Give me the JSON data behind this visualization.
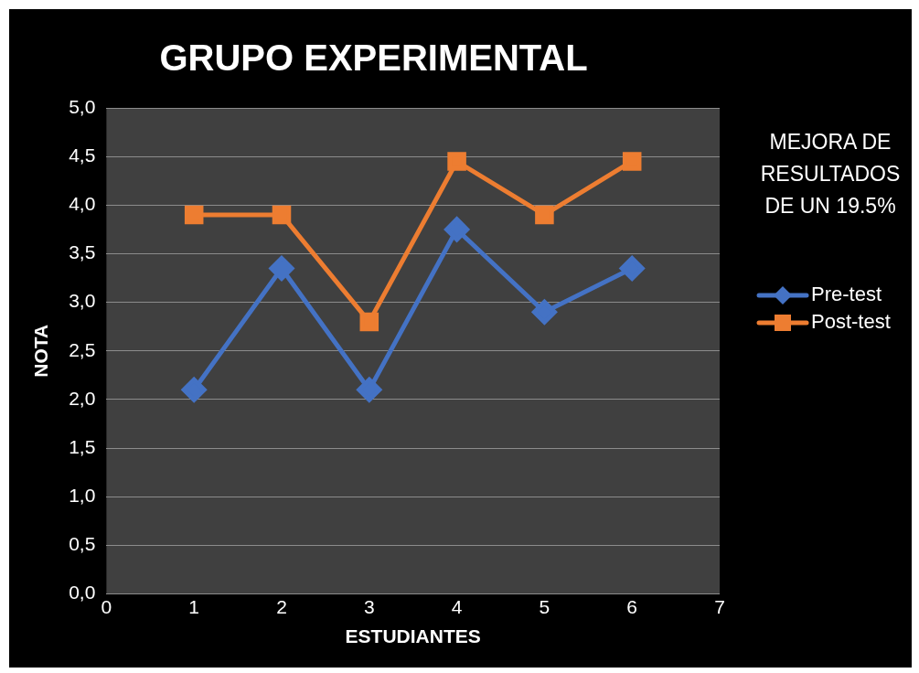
{
  "chart_data": {
    "type": "line",
    "title": "GRUPO EXPERIMENTAL",
    "xlabel": "ESTUDIANTES",
    "ylabel": "NOTA",
    "x": [
      1,
      2,
      3,
      4,
      5,
      6
    ],
    "series": [
      {
        "name": "Pre-test",
        "color": "#4472c4",
        "marker": "diamond",
        "values": [
          2.1,
          3.35,
          2.1,
          3.75,
          2.9,
          3.35
        ]
      },
      {
        "name": "Post-test",
        "color": "#ed7d31",
        "marker": "square",
        "values": [
          3.9,
          3.9,
          2.8,
          4.45,
          3.9,
          4.45
        ]
      }
    ],
    "xlim": [
      0,
      7
    ],
    "xticks": [
      0,
      1,
      2,
      3,
      4,
      5,
      6,
      7
    ],
    "ylim": [
      0,
      5
    ],
    "yticks": [
      {
        "value": 0,
        "label": "0,0"
      },
      {
        "value": 0.5,
        "label": "0,5"
      },
      {
        "value": 1,
        "label": "1,0"
      },
      {
        "value": 1.5,
        "label": "1,5"
      },
      {
        "value": 2,
        "label": "2,0"
      },
      {
        "value": 2.5,
        "label": "2,5"
      },
      {
        "value": 3,
        "label": "3,0"
      },
      {
        "value": 3.5,
        "label": "3,5"
      },
      {
        "value": 4,
        "label": "4,0"
      },
      {
        "value": 4.5,
        "label": "4,5"
      },
      {
        "value": 5,
        "label": "5,0"
      }
    ],
    "grid": "y",
    "legend": "right",
    "line_style": "solid",
    "annotations": [
      "MEJORA DE\nRESULTADOS\nDE UN 19.5%"
    ]
  }
}
